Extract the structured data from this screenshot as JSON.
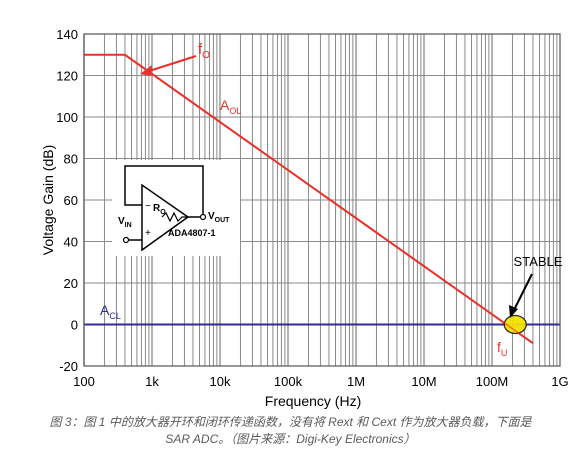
{
  "chart_data": {
    "type": "line",
    "xlabel": "Frequency (Hz)",
    "ylabel": "Voltage Gain (dB)",
    "x_scale": "log",
    "xlim": [
      100,
      1000000000
    ],
    "ylim": [
      -20,
      140
    ],
    "x_tick_labels": [
      {
        "value": 100,
        "label": "100"
      },
      {
        "value": 1000,
        "label": "1k"
      },
      {
        "value": 10000,
        "label": "10k"
      },
      {
        "value": 100000,
        "label": "100k"
      },
      {
        "value": 1000000,
        "label": "1M"
      },
      {
        "value": 10000000,
        "label": "10M"
      },
      {
        "value": 100000000,
        "label": "100M"
      },
      {
        "value": 1000000000,
        "label": "1G"
      }
    ],
    "y_ticks": [
      -20,
      0,
      20,
      40,
      60,
      80,
      100,
      120,
      140
    ],
    "grid": true,
    "series": [
      {
        "name": "AOL",
        "color": "#e8312a",
        "points": [
          [
            100,
            130
          ],
          [
            400,
            130
          ],
          [
            400000000,
            -9
          ]
        ]
      },
      {
        "name": "ACL",
        "color": "#2e2d8f",
        "points": [
          [
            100,
            0
          ],
          [
            1000000000,
            0
          ]
        ]
      }
    ],
    "annotations": {
      "fo": {
        "main": "f",
        "sub": "O",
        "x": 400,
        "y": 130
      },
      "aol": {
        "main": "A",
        "sub": "OL"
      },
      "acl": {
        "main": "A",
        "sub": "CL"
      },
      "fu": {
        "main": "f",
        "sub": "U",
        "x": 220000000,
        "y": 0
      },
      "stable": "STABLE"
    },
    "inset": {
      "part": "ADA4807-1",
      "vin_main": "V",
      "vin_sub": "IN",
      "vout_main": "V",
      "vout_sub": "OUT",
      "ro_main": "R",
      "ro_sub": "O",
      "minus": "−",
      "plus": "+"
    }
  },
  "caption": {
    "line1": "图 3：图 1 中的放大器开环和闭环传递函数，没有将 Rext 和 Cext 作为放大器负载，下面是",
    "line2": "SAR ADC。（图片来源：Digi-Key Electronics）"
  },
  "colors": {
    "aol": "#e8312a",
    "acl": "#2e2d8f",
    "grid": "#8a8a8a",
    "stable_fill": "#f2e200"
  }
}
